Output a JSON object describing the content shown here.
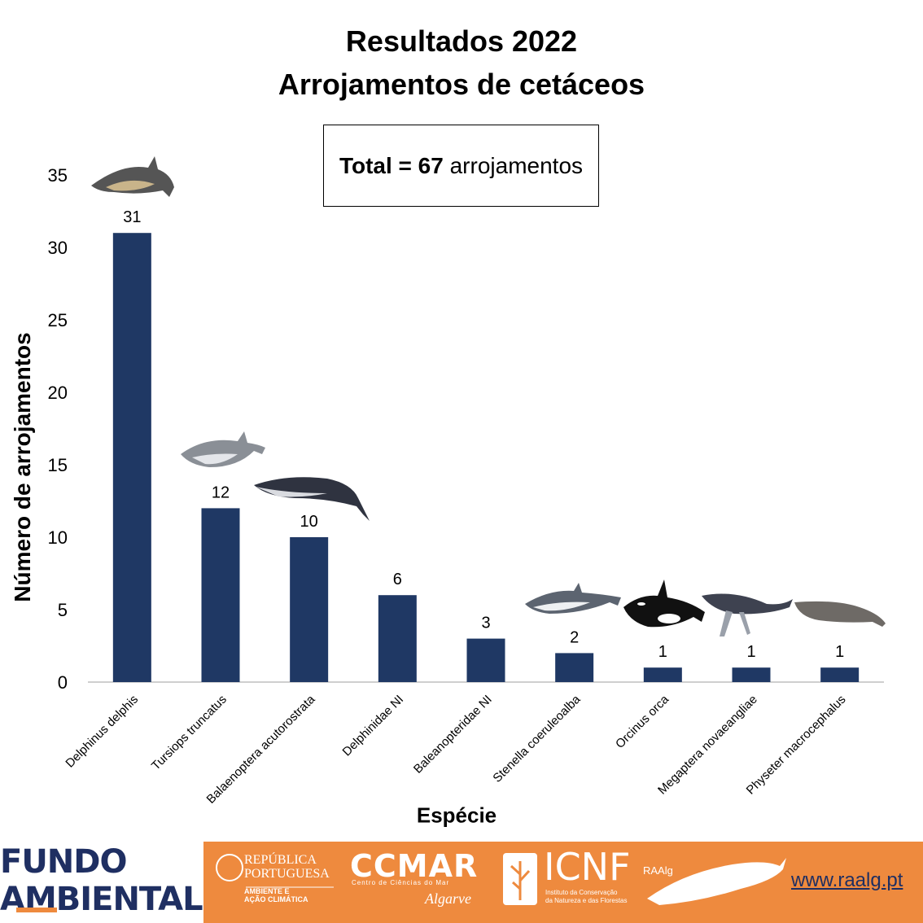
{
  "chart_data": {
    "type": "bar",
    "title": "Resultados 2022",
    "subtitle": "Arrojamentos de cetáceos",
    "annotation": {
      "bold": "Total = 67",
      "rest": " arrojamentos"
    },
    "xlabel": "Espécie",
    "ylabel": "Número de arrojamentos",
    "categories": [
      "Delphinus delphis",
      "Tursiops truncatus",
      "Balaenoptera acutorostrata",
      "Delphinidae NI",
      "Baleanopteridae NI",
      "Stenella coeruleoalba",
      "Orcinus orca",
      "Megaptera novaeangliae",
      "Physeter macrocephalus"
    ],
    "values": [
      31,
      12,
      10,
      6,
      3,
      2,
      1,
      1,
      1
    ],
    "ylim": [
      0,
      35
    ],
    "yticks": [
      0,
      5,
      10,
      15,
      20,
      25,
      30,
      35
    ],
    "grid": false,
    "bar_color": "#1f3864",
    "data_labels": true
  },
  "footer": {
    "fundo_line1": "FUNDO",
    "fundo_line2": "AMBIENTAL",
    "republica_1": "REPÚBLICA",
    "republica_2": "PORTUGUESA",
    "ambiente_1": "AMBIENTE E",
    "ambiente_2": "AÇÃO CLIMÁTICA",
    "ccmar": "CCMAR",
    "ccmar_sub": "Centro de Ciências do Mar",
    "ccmar_algarve": "Algarve",
    "icnf": "ICNF",
    "icnf_sub_1": "Instituto da Conservação",
    "icnf_sub_2": "da Natureza e das Florestas",
    "raalg": "RAAlg",
    "website": "www.raalg.pt",
    "bg_color": "#ee8a3e"
  }
}
